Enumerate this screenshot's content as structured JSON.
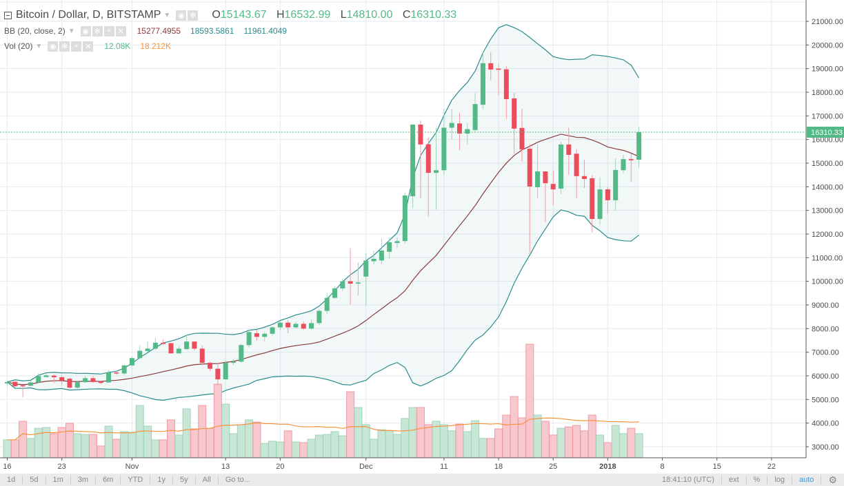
{
  "legend": {
    "title": "Bitcoin / Dollar, D, BITSTAMP",
    "o_label": "O",
    "o": "15143.67",
    "h_label": "H",
    "h": "16532.99",
    "l_label": "L",
    "l": "14810.00",
    "c_label": "C",
    "c": "16310.33",
    "bb_label": "BB (20, close, 2)",
    "bb_basis": "15277.4955",
    "bb_upper": "18593.5861",
    "bb_lower": "11961.4049",
    "vol_label": "Vol (20)",
    "vol_value": "12.08K",
    "vol_ma": "18.212K"
  },
  "price_tag": "16310.33",
  "toolbar": {
    "ranges": [
      "1d",
      "5d",
      "1m",
      "3m",
      "6m",
      "YTD",
      "1y",
      "5y",
      "All",
      "Go to..."
    ],
    "clock": "18:41:10 (UTC)",
    "ext": "ext",
    "percent": "%",
    "log": "log",
    "auto": "auto"
  },
  "colors": {
    "up": "#53b987",
    "down": "#eb4d5c",
    "band": "#2a8b8e",
    "basis": "#8b3a3a",
    "vol_ma": "#f7923a",
    "grid": "#e4ebf1"
  },
  "chart_data": {
    "type": "candlestick",
    "symbol": "BTCUSD",
    "y_ticks": [
      3000,
      4000,
      5000,
      6000,
      7000,
      8000,
      9000,
      10000,
      11000,
      12000,
      13000,
      14000,
      15000,
      16000,
      17000,
      18000,
      19000,
      20000,
      21000
    ],
    "y_tick_labels": [
      "3000.00",
      "4000.00",
      "5000.00",
      "6000.00",
      "7000.00",
      "8000.00",
      "9000.00",
      "10000.00",
      "11000.00",
      "12000.00",
      "13000.00",
      "14000.00",
      "15000.00",
      "16000.00",
      "17000.00",
      "18000.00",
      "19000.00",
      "20000.00",
      "21000.00"
    ],
    "ylim": [
      2500,
      21900
    ],
    "x_labels": [
      {
        "index": 0,
        "label": "16"
      },
      {
        "index": 7,
        "label": "23"
      },
      {
        "index": 16,
        "label": "Nov"
      },
      {
        "index": 28,
        "label": "13"
      },
      {
        "index": 35,
        "label": "20"
      },
      {
        "index": 46,
        "label": "Dec"
      },
      {
        "index": 56,
        "label": "11"
      },
      {
        "index": 63,
        "label": "18"
      },
      {
        "index": 70,
        "label": "25"
      },
      {
        "index": 77,
        "label": "2018"
      },
      {
        "index": 84,
        "label": "8"
      },
      {
        "index": 91,
        "label": "15"
      },
      {
        "index": 98,
        "label": "22"
      }
    ],
    "ohlc": [
      [
        5680,
        5790,
        5560,
        5740
      ],
      [
        5750,
        5760,
        5480,
        5560
      ],
      [
        5600,
        5620,
        5100,
        5580
      ],
      [
        5580,
        5780,
        5560,
        5720
      ],
      [
        5720,
        6100,
        5700,
        5990
      ],
      [
        5950,
        6120,
        5930,
        6020
      ],
      [
        6010,
        6060,
        5700,
        5940
      ],
      [
        5940,
        6000,
        5600,
        5800
      ],
      [
        5880,
        5900,
        5450,
        5500
      ],
      [
        5500,
        5760,
        5450,
        5730
      ],
      [
        5730,
        6000,
        5700,
        5900
      ],
      [
        5900,
        6000,
        5700,
        5740
      ],
      [
        5760,
        5800,
        5650,
        5700
      ],
      [
        5720,
        6250,
        5700,
        6140
      ],
      [
        6140,
        6200,
        6050,
        6100
      ],
      [
        6100,
        6480,
        6050,
        6440
      ],
      [
        6440,
        6800,
        6400,
        6750
      ],
      [
        6750,
        7300,
        6700,
        7060
      ],
      [
        7050,
        7450,
        7000,
        7150
      ],
      [
        7150,
        7600,
        7100,
        7400
      ],
      [
        7400,
        7550,
        7300,
        7350
      ],
      [
        7380,
        7400,
        6950,
        6950
      ],
      [
        6950,
        7250,
        6950,
        7150
      ],
      [
        7130,
        7750,
        7100,
        7450
      ],
      [
        7450,
        7450,
        7080,
        7150
      ],
      [
        7150,
        7300,
        6450,
        6550
      ],
      [
        6550,
        6600,
        6200,
        6300
      ],
      [
        6300,
        6550,
        5600,
        5850
      ],
      [
        5850,
        6650,
        5850,
        6550
      ],
      [
        6550,
        6700,
        6450,
        6600
      ],
      [
        6600,
        7350,
        6550,
        7300
      ],
      [
        7300,
        7950,
        7200,
        7850
      ],
      [
        7800,
        7950,
        7500,
        7650
      ],
      [
        7650,
        7850,
        7450,
        7780
      ],
      [
        7780,
        8100,
        7700,
        8050
      ],
      [
        8050,
        8300,
        7950,
        8250
      ],
      [
        8250,
        8350,
        7800,
        8050
      ],
      [
        8050,
        8300,
        8000,
        8200
      ],
      [
        8200,
        8300,
        7950,
        8000
      ],
      [
        8000,
        8380,
        7950,
        8230
      ],
      [
        8230,
        8800,
        8150,
        8750
      ],
      [
        8750,
        9500,
        8600,
        9300
      ],
      [
        9300,
        9800,
        9250,
        9700
      ],
      [
        9700,
        10100,
        9600,
        10000
      ],
      [
        10000,
        11400,
        9000,
        9900
      ],
      [
        9900,
        10800,
        9400,
        9950
      ],
      [
        10200,
        11200,
        9000,
        10880
      ],
      [
        10850,
        11300,
        10700,
        10950
      ],
      [
        10880,
        11800,
        10700,
        11300
      ],
      [
        11250,
        11850,
        10950,
        11650
      ],
      [
        11620,
        11850,
        11400,
        11700
      ],
      [
        11700,
        13750,
        11600,
        13630
      ],
      [
        13600,
        16650,
        13100,
        16630
      ],
      [
        16630,
        16800,
        13510,
        15790
      ],
      [
        15800,
        16100,
        12730,
        14590
      ],
      [
        14590,
        16500,
        13030,
        14700
      ],
      [
        14700,
        17300,
        14500,
        16500
      ],
      [
        16500,
        17300,
        16000,
        16700
      ],
      [
        16680,
        17130,
        15550,
        16250
      ],
      [
        16250,
        16700,
        15800,
        16440
      ],
      [
        16400,
        17970,
        16300,
        17500
      ],
      [
        17470,
        19690,
        17300,
        19230
      ],
      [
        19230,
        19700,
        18500,
        18960
      ],
      [
        19000,
        19200,
        17880,
        18950
      ],
      [
        18970,
        19100,
        16860,
        17710
      ],
      [
        17740,
        17970,
        15400,
        16460
      ],
      [
        16490,
        17300,
        15060,
        15580
      ],
      [
        15610,
        15810,
        11210,
        14010
      ],
      [
        13980,
        15790,
        13510,
        14650
      ],
      [
        14650,
        14650,
        12490,
        14150
      ],
      [
        14120,
        14700,
        13220,
        13890
      ],
      [
        13920,
        15900,
        13700,
        15790
      ],
      [
        15790,
        16510,
        14500,
        15350
      ],
      [
        15400,
        15600,
        13510,
        14450
      ],
      [
        14450,
        15150,
        13950,
        14330
      ],
      [
        14360,
        14480,
        12060,
        12640
      ],
      [
        12640,
        14400,
        12400,
        13890
      ],
      [
        13890,
        14000,
        12850,
        13430
      ],
      [
        13430,
        15200,
        13000,
        14710
      ],
      [
        14700,
        15350,
        14600,
        15170
      ],
      [
        15170,
        15400,
        14200,
        15120
      ],
      [
        15143.67,
        16532.99,
        14810,
        16310.33
      ]
    ],
    "volume_k": [
      9.0,
      9.0,
      18.3,
      9.7,
      14.8,
      15.2,
      12.1,
      15.2,
      17.3,
      12.1,
      11.7,
      11.7,
      5.9,
      15.9,
      9.3,
      13.1,
      12.8,
      26.2,
      15.9,
      9.0,
      9.0,
      19.0,
      11.4,
      24.5,
      14.5,
      26.2,
      14.8,
      36.9,
      26.9,
      12.1,
      16.6,
      19.0,
      17.9,
      7.2,
      8.3,
      7.9,
      13.5,
      7.9,
      7.6,
      9.3,
      11.4,
      11.7,
      13.1,
      11.0,
      33.1,
      25.2,
      16.6,
      9.3,
      14.1,
      13.5,
      11.7,
      19.7,
      25.2,
      25.2,
      16.6,
      18.3,
      16.6,
      13.5,
      16.9,
      13.1,
      18.6,
      9.7,
      9.7,
      14.5,
      21.4,
      30.7,
      20.0,
      56.9,
      21.4,
      18.3,
      11.4,
      14.8,
      15.5,
      16.2,
      13.5,
      21.4,
      11.4,
      7.6,
      16.2,
      12.1,
      14.8,
      12.1
    ],
    "indicators": {
      "bb_length": 20,
      "bb_mult": 2,
      "vol_ma_length": 20
    }
  }
}
